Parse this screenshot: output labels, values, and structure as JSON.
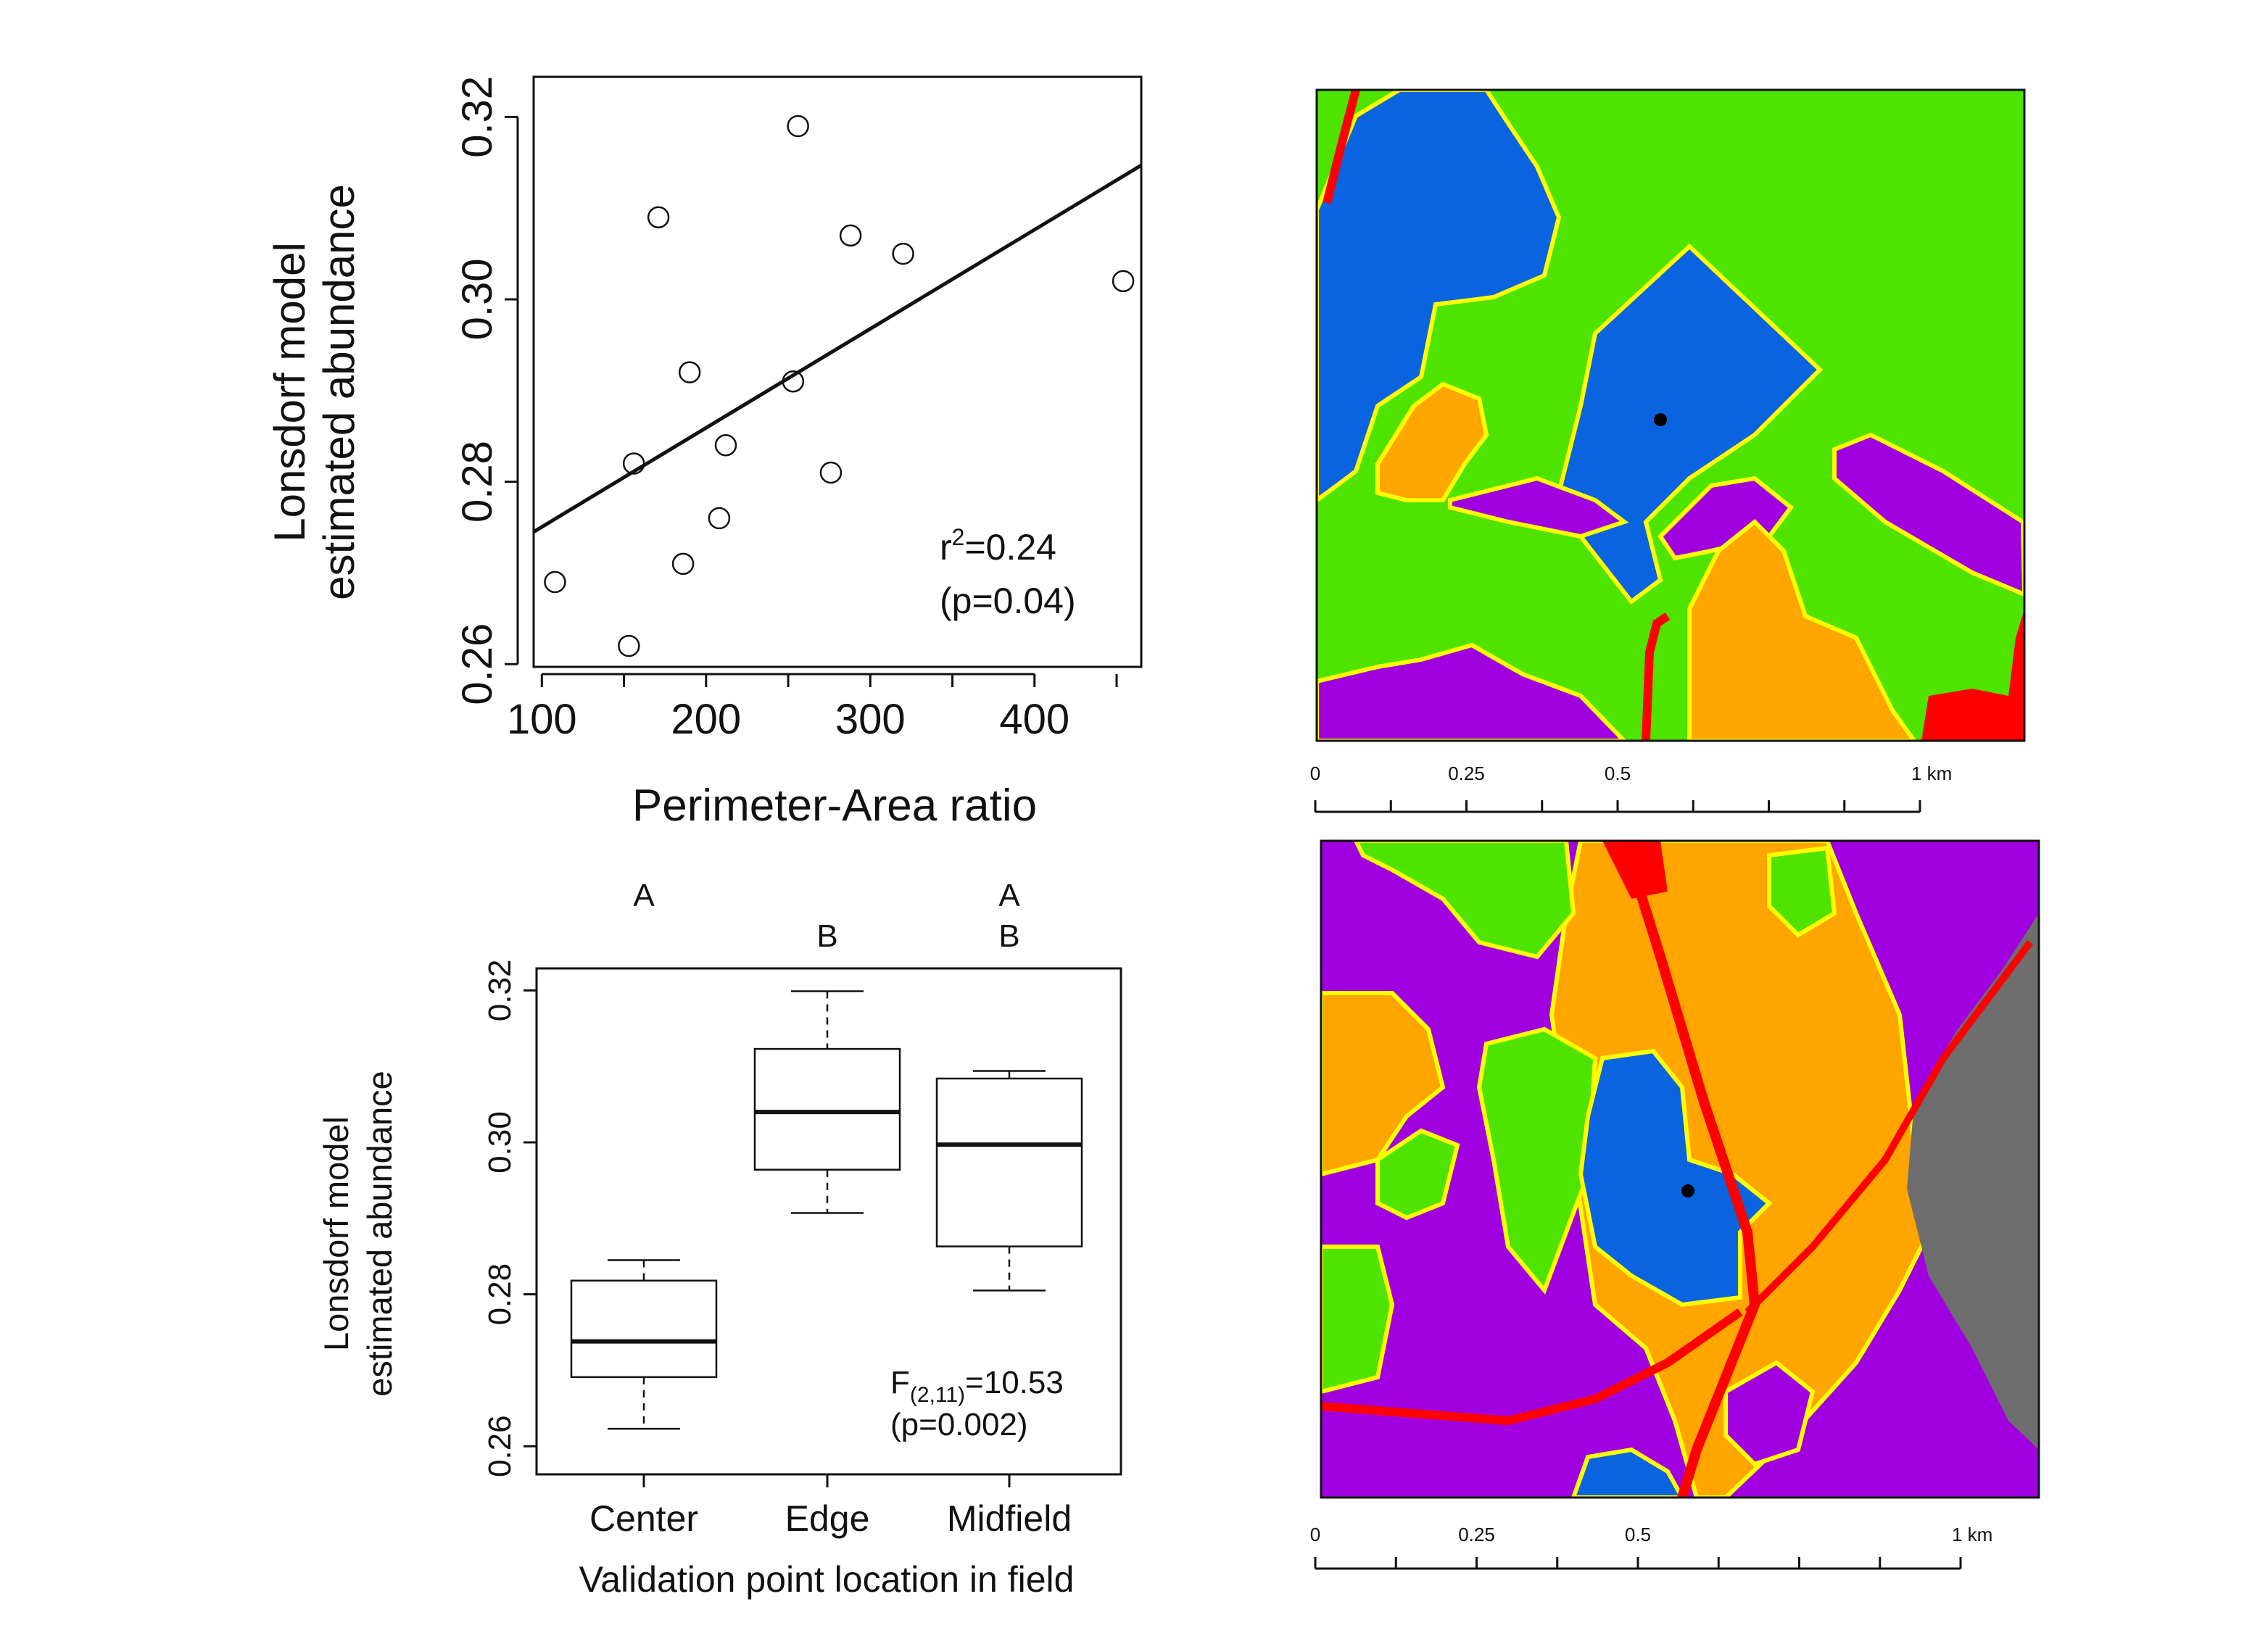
{
  "chart_data": [
    {
      "type": "scatter",
      "xlabel": "Perimeter-Area ratio",
      "ylabel_line1": "Lonsdorf model",
      "ylabel_line2": "estimated abundance",
      "x_ticks": [
        100,
        200,
        300,
        400
      ],
      "y_ticks": [
        0.26,
        0.28,
        0.3,
        0.32
      ],
      "y_tick_labels": [
        "0.26",
        "0.28",
        "0.30",
        "0.32"
      ],
      "xlim": [
        95,
        465
      ],
      "ylim": [
        0.2597,
        0.3244
      ],
      "points": [
        {
          "x": 108,
          "y": 0.269
        },
        {
          "x": 153,
          "y": 0.262
        },
        {
          "x": 156,
          "y": 0.282
        },
        {
          "x": 171,
          "y": 0.309
        },
        {
          "x": 186,
          "y": 0.271
        },
        {
          "x": 190,
          "y": 0.292
        },
        {
          "x": 208,
          "y": 0.276
        },
        {
          "x": 212,
          "y": 0.284
        },
        {
          "x": 253,
          "y": 0.291
        },
        {
          "x": 256,
          "y": 0.319
        },
        {
          "x": 276,
          "y": 0.281
        },
        {
          "x": 288,
          "y": 0.307
        },
        {
          "x": 320,
          "y": 0.305
        },
        {
          "x": 454,
          "y": 0.302
        }
      ],
      "fit_line": {
        "x": [
          95,
          465
        ],
        "y": [
          0.2745,
          0.3147
        ]
      },
      "annotation_r2_prefix": "r",
      "annotation_r2_sup": "2",
      "annotation_r2_value": "=0.24",
      "annotation_p": "(p=0.04)",
      "grid": false
    },
    {
      "type": "boxplot",
      "xlabel": "Validation point location in field",
      "ylabel_line1": "Lonsdorf model",
      "ylabel_line2": "estimated abundance",
      "categories": [
        "Center",
        "Edge",
        "Midfield"
      ],
      "y_ticks": [
        0.26,
        0.28,
        0.3,
        0.32
      ],
      "y_tick_labels": [
        "0.26",
        "0.28",
        "0.30",
        "0.32"
      ],
      "ylim": [
        0.2563,
        0.3229
      ],
      "boxes": [
        {
          "whisker_low": 0.2623,
          "q1": 0.2691,
          "median": 0.2738,
          "q3": 0.2818,
          "whisker_high": 0.2845
        },
        {
          "whisker_low": 0.2907,
          "q1": 0.2964,
          "median": 0.304,
          "q3": 0.3123,
          "whisker_high": 0.3199
        },
        {
          "whisker_low": 0.2805,
          "q1": 0.2863,
          "median": 0.2997,
          "q3": 0.3084,
          "whisker_high": 0.3094
        }
      ],
      "group_letters": [
        [
          "A"
        ],
        [
          "B"
        ],
        [
          "A",
          "B"
        ]
      ],
      "annotation_f_prefix": "F",
      "annotation_f_sub": "(2,11)",
      "annotation_f_value": "=10.53",
      "annotation_p": "(p=0.002)",
      "grid": false
    }
  ],
  "maps": [
    {
      "name": "top-land-cover-map",
      "scalebar_labels": [
        "0",
        "0.25",
        "0.5",
        "1 km"
      ]
    },
    {
      "name": "bottom-land-cover-map",
      "scalebar_labels": [
        "0",
        "0.25",
        "0.5",
        "1 km"
      ]
    }
  ],
  "colors": {
    "green": "#4fe300",
    "blue": "#0a64e0",
    "orange": "#ffa500",
    "purple": "#a000e0",
    "red": "#ff0000",
    "yellow": "#ffff00",
    "gray": "#6e6e6e",
    "point": "#000000"
  }
}
